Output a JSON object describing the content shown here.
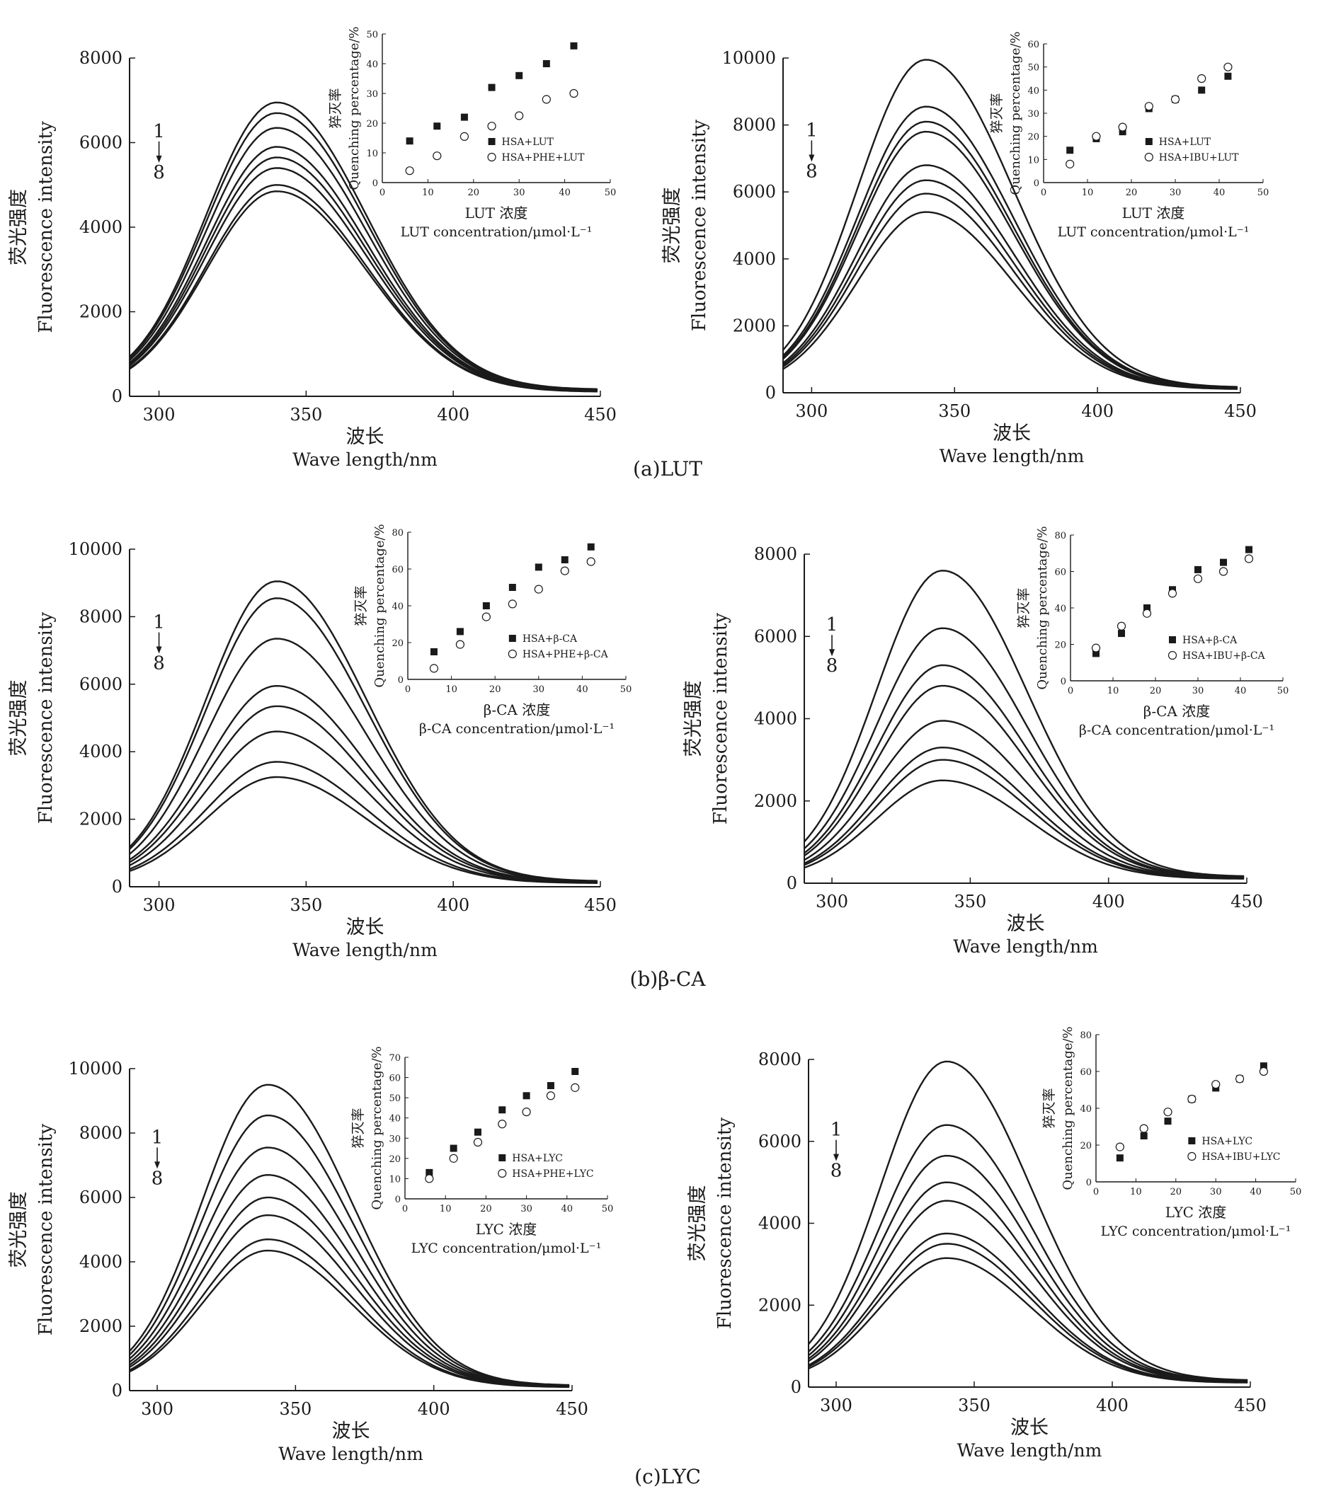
{
  "captions": [
    "(a)LUT",
    "(b)β-CA",
    "(c)LYC"
  ],
  "chart_data": [
    {
      "id": "a-left",
      "type": "line",
      "xlabel_cn": "波长",
      "xlabel": "Wave length/nm",
      "ylabel_cn": "荧光强度",
      "ylabel": "Fluorescence intensity",
      "xlim": [
        290,
        450
      ],
      "ylim": [
        0,
        8000
      ],
      "xticks": [
        300,
        350,
        400,
        450
      ],
      "yticks": [
        0,
        2000,
        4000,
        6000,
        8000
      ],
      "marker_top": "1",
      "marker_bottom": "8",
      "peak_x": 340,
      "peaks": [
        6950,
        6700,
        6350,
        5900,
        5650,
        5400,
        5000,
        4850
      ],
      "inset": {
        "type": "scatter",
        "ylabel_cn": "猝灭率",
        "ylabel": "Quenching percentage/%",
        "xlabel_cn": "LUT 浓度",
        "xlabel": "LUT concentration/μmol·L⁻¹",
        "xlim": [
          0,
          50
        ],
        "ylim": [
          0,
          50
        ],
        "xticks": [
          0,
          10,
          20,
          30,
          40,
          50
        ],
        "yticks": [
          0,
          10,
          20,
          30,
          40,
          50
        ],
        "x": [
          6,
          12,
          18,
          24,
          30,
          36,
          42
        ],
        "series": [
          {
            "name": "HSA+LUT",
            "marker": "filled-square",
            "values": [
              14,
              19,
              22,
              32,
              36,
              40,
              46
            ]
          },
          {
            "name": "HSA+PHE+LUT",
            "marker": "open-circle",
            "values": [
              4,
              9,
              15.5,
              19,
              22.5,
              28,
              30
            ]
          }
        ]
      }
    },
    {
      "id": "a-right",
      "type": "line",
      "xlabel_cn": "波长",
      "xlabel": "Wave length/nm",
      "ylabel_cn": "荧光强度",
      "ylabel": "Fluorescence intensity",
      "xlim": [
        290,
        450
      ],
      "ylim": [
        0,
        10000
      ],
      "xticks": [
        300,
        350,
        400,
        450
      ],
      "yticks": [
        0,
        2000,
        4000,
        6000,
        8000,
        10000
      ],
      "marker_top": "1",
      "marker_bottom": "8",
      "peak_x": 340,
      "peaks": [
        9950,
        8550,
        8100,
        7800,
        6800,
        6350,
        5950,
        5400
      ],
      "inset": {
        "type": "scatter",
        "ylabel_cn": "猝灭率",
        "ylabel": "Quenching percentage/%",
        "xlabel_cn": "LUT 浓度",
        "xlabel": "LUT concentration/μmol·L⁻¹",
        "xlim": [
          0,
          50
        ],
        "ylim": [
          0,
          60
        ],
        "xticks": [
          0,
          10,
          20,
          30,
          40,
          50
        ],
        "yticks": [
          0,
          10,
          20,
          30,
          40,
          50,
          60
        ],
        "x": [
          6,
          12,
          18,
          24,
          30,
          36,
          42
        ],
        "series": [
          {
            "name": "HSA+LUT",
            "marker": "filled-square",
            "values": [
              14,
              19,
              22,
              32,
              36,
              40,
              46
            ]
          },
          {
            "name": "HSA+IBU+LUT",
            "marker": "open-circle",
            "values": [
              8,
              20,
              24,
              33,
              36,
              45,
              50
            ]
          }
        ]
      }
    },
    {
      "id": "b-left",
      "type": "line",
      "xlabel_cn": "波长",
      "xlabel": "Wave length/nm",
      "ylabel_cn": "荧光强度",
      "ylabel": "Fluorescence intensity",
      "xlim": [
        290,
        450
      ],
      "ylim": [
        0,
        10000
      ],
      "xticks": [
        300,
        350,
        400,
        450
      ],
      "yticks": [
        0,
        2000,
        4000,
        6000,
        8000,
        10000
      ],
      "marker_top": "1",
      "marker_bottom": "8",
      "peak_x": 340,
      "peaks": [
        9050,
        8550,
        7350,
        5950,
        5350,
        4600,
        3700,
        3250
      ],
      "inset": {
        "type": "scatter",
        "ylabel_cn": "猝灭率",
        "ylabel": "Quenching percentage/%",
        "xlabel_cn": "β-CA 浓度",
        "xlabel": "β-CA concentration/μmol·L⁻¹",
        "xlim": [
          0,
          50
        ],
        "ylim": [
          0,
          80
        ],
        "xticks": [
          0,
          10,
          20,
          30,
          40,
          50
        ],
        "yticks": [
          0,
          20,
          40,
          60,
          80
        ],
        "x": [
          6,
          12,
          18,
          24,
          30,
          36,
          42
        ],
        "series": [
          {
            "name": "HSA+β-CA",
            "marker": "filled-square",
            "values": [
              15,
              26,
              40,
              50,
              61,
              65,
              72
            ]
          },
          {
            "name": "HSA+PHE+β-CA",
            "marker": "open-circle",
            "values": [
              6,
              19,
              34,
              41,
              49,
              59,
              64
            ]
          }
        ]
      }
    },
    {
      "id": "b-right",
      "type": "line",
      "xlabel_cn": "波长",
      "xlabel": "Wave length/nm",
      "ylabel_cn": "荧光强度",
      "ylabel": "Fluorescence intensity",
      "xlim": [
        290,
        450
      ],
      "ylim": [
        0,
        8000
      ],
      "xticks": [
        300,
        350,
        400,
        450
      ],
      "yticks": [
        0,
        2000,
        4000,
        6000,
        8000
      ],
      "marker_top": "1",
      "marker_bottom": "8",
      "peak_x": 340,
      "peaks": [
        7600,
        6200,
        5300,
        4800,
        3950,
        3300,
        3000,
        2500
      ],
      "inset": {
        "type": "scatter",
        "ylabel_cn": "猝灭率",
        "ylabel": "Quenching percentage/%",
        "xlabel_cn": "β-CA 浓度",
        "xlabel": "β-CA concentration/μmol·L⁻¹",
        "xlim": [
          0,
          50
        ],
        "ylim": [
          0,
          80
        ],
        "xticks": [
          0,
          10,
          20,
          30,
          40,
          50
        ],
        "yticks": [
          0,
          20,
          40,
          60,
          80
        ],
        "x": [
          6,
          12,
          18,
          24,
          30,
          36,
          42
        ],
        "series": [
          {
            "name": "HSA+β-CA",
            "marker": "filled-square",
            "values": [
              15,
              26,
              40,
              50,
              61,
              65,
              72
            ]
          },
          {
            "name": "HSA+IBU+β-CA",
            "marker": "open-circle",
            "values": [
              18,
              30,
              37,
              48,
              56,
              60,
              67
            ]
          }
        ]
      }
    },
    {
      "id": "c-left",
      "type": "line",
      "xlabel_cn": "波长",
      "xlabel": "Wave length/nm",
      "ylabel_cn": "荧光强度",
      "ylabel": "Fluorescence intensity",
      "xlim": [
        290,
        450
      ],
      "ylim": [
        0,
        10000
      ],
      "xticks": [
        300,
        350,
        400,
        450
      ],
      "yticks": [
        0,
        2000,
        4000,
        6000,
        8000,
        10000
      ],
      "marker_top": "1",
      "marker_bottom": "8",
      "peak_x": 340,
      "peaks": [
        9500,
        8550,
        7550,
        6700,
        6000,
        5450,
        4700,
        4350
      ],
      "inset": {
        "type": "scatter",
        "ylabel_cn": "猝灭率",
        "ylabel": "Quenching percentage/%",
        "xlabel_cn": "LYC 浓度",
        "xlabel": "LYC concentration/μmol·L⁻¹",
        "xlim": [
          0,
          50
        ],
        "ylim": [
          0,
          70
        ],
        "xticks": [
          0,
          10,
          20,
          30,
          40,
          50
        ],
        "yticks": [
          0,
          10,
          20,
          30,
          40,
          50,
          60,
          70
        ],
        "x": [
          6,
          12,
          18,
          24,
          30,
          36,
          42
        ],
        "series": [
          {
            "name": "HSA+LYC",
            "marker": "filled-square",
            "values": [
              13,
              25,
              33,
              44,
              51,
              56,
              63
            ]
          },
          {
            "name": "HSA+PHE+LYC",
            "marker": "open-circle",
            "values": [
              10,
              20,
              28,
              37,
              43,
              51,
              55
            ]
          }
        ]
      }
    },
    {
      "id": "c-right",
      "type": "line",
      "xlabel_cn": "波长",
      "xlabel": "Wave length/nm",
      "ylabel_cn": "荧光强度",
      "ylabel": "Fluorescence intensity",
      "xlim": [
        290,
        450
      ],
      "ylim": [
        0,
        8000
      ],
      "xticks": [
        300,
        350,
        400,
        450
      ],
      "yticks": [
        0,
        2000,
        4000,
        6000,
        8000
      ],
      "marker_top": "1",
      "marker_bottom": "8",
      "peak_x": 340,
      "peaks": [
        7950,
        6400,
        5650,
        5000,
        4550,
        3750,
        3500,
        3150
      ],
      "inset": {
        "type": "scatter",
        "ylabel_cn": "猝灭率",
        "ylabel": "Quenching percentage/%",
        "xlabel_cn": "LYC 浓度",
        "xlabel": "LYC concentration/μmol·L⁻¹",
        "xlim": [
          0,
          50
        ],
        "ylim": [
          0,
          80
        ],
        "xticks": [
          0,
          10,
          20,
          30,
          40,
          50
        ],
        "yticks": [
          0,
          20,
          40,
          60,
          80
        ],
        "x": [
          6,
          12,
          18,
          24,
          30,
          36,
          42
        ],
        "series": [
          {
            "name": "HSA+LYC",
            "marker": "filled-square",
            "values": [
              13,
              25,
              33,
              45,
              51,
              56,
              63
            ]
          },
          {
            "name": "HSA+IBU+LYC",
            "marker": "open-circle",
            "values": [
              19,
              29,
              38,
              45,
              53,
              56,
              60
            ]
          }
        ]
      }
    }
  ]
}
